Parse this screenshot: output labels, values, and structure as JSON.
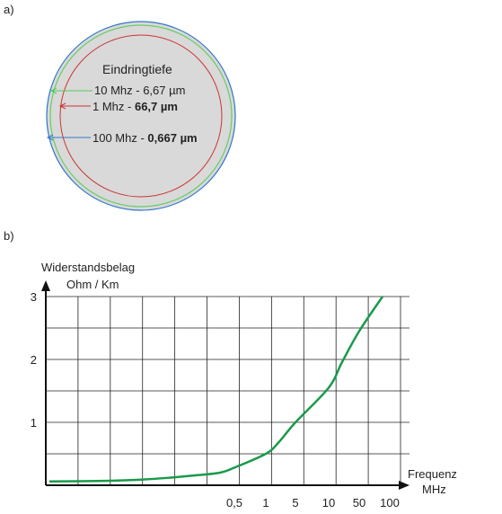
{
  "panel_a": {
    "label": "a)",
    "title": "Eindringtiefe",
    "entries": [
      {
        "freq": "10 Mhz - ",
        "depth": "6,67 µm",
        "color": "#55cc55"
      },
      {
        "freq": "1 Mhz - ",
        "depth": "66,7 µm",
        "color": "#cc3333"
      },
      {
        "freq": "100 Mhz - ",
        "depth": "0,667 µm",
        "color": "#3377cc"
      }
    ]
  },
  "panel_b": {
    "label": "b)"
  },
  "chart_data": {
    "type": "line",
    "ylabel_line1": "Widerstandsbelag",
    "ylabel_line2": "Ohm / Km",
    "xlabel_line1": "Frequenz",
    "xlabel_line2": "MHz",
    "x_tick_labels": [
      "0,5",
      "1",
      "5",
      "10",
      "50",
      "100"
    ],
    "y_tick_labels": [
      "1",
      "2",
      "3"
    ],
    "ylim": [
      0,
      3
    ],
    "grid": true,
    "series": [
      {
        "color": "#1a9a4a",
        "points": [
          {
            "x": 0.005,
            "y": 0.06
          },
          {
            "x": 0.02,
            "y": 0.07
          },
          {
            "x": 0.05,
            "y": 0.09
          },
          {
            "x": 0.1,
            "y": 0.12
          },
          {
            "x": 0.2,
            "y": 0.16
          },
          {
            "x": 0.35,
            "y": 0.2
          },
          {
            "x": 0.5,
            "y": 0.28
          },
          {
            "x": 1,
            "y": 0.5
          },
          {
            "x": 2,
            "y": 0.68
          },
          {
            "x": 5,
            "y": 1.0
          },
          {
            "x": 10,
            "y": 1.55
          },
          {
            "x": 20,
            "y": 1.95
          },
          {
            "x": 50,
            "y": 2.45
          },
          {
            "x": 100,
            "y": 3.0
          }
        ]
      }
    ]
  }
}
